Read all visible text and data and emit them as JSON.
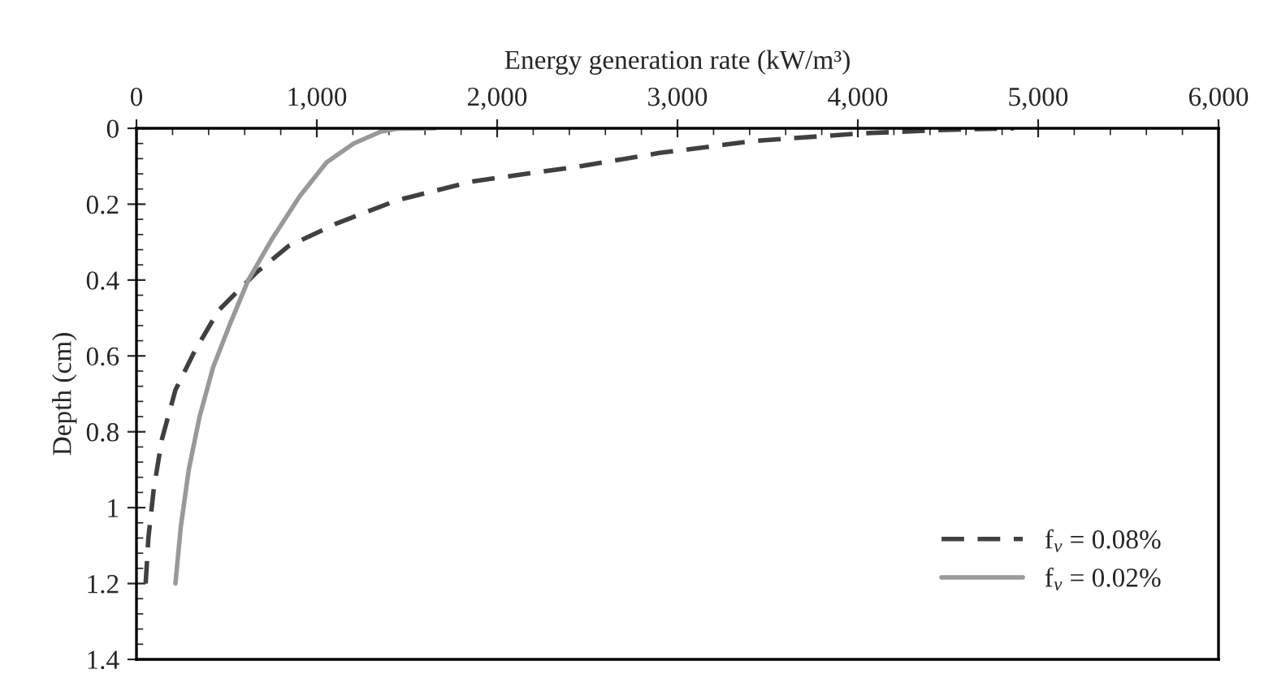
{
  "chart_data": {
    "type": "line",
    "xlabel": "Energy generation rate (kW/m³)",
    "ylabel": "Depth (cm)",
    "xlim": [
      0,
      6000
    ],
    "xticks": [
      0,
      {
        "value": 1000,
        "label": "1,000"
      },
      {
        "value": 2000,
        "label": "2,000"
      },
      {
        "value": 3000,
        "label": "3,000"
      },
      {
        "value": 4000,
        "label": "4,000"
      },
      {
        "value": 5000,
        "label": "5,000"
      },
      {
        "value": 6000,
        "label": "6,000"
      }
    ],
    "ylim": [
      1.4,
      0
    ],
    "yticks": [
      0,
      0.2,
      0.4,
      0.6,
      0.8,
      1,
      1.2,
      1.4
    ],
    "grid": false,
    "legend": "bottom right",
    "marker": "none",
    "series": [
      {
        "name": "f$_{v}$ = 0.08%",
        "color": "#404040",
        "line_style": "dashed",
        "x": [
          51,
          66,
          96,
          141,
          216,
          320,
          455,
          665,
          844,
          1114,
          1443,
          1862,
          2461,
          2900,
          3433,
          4000,
          4478,
          4866
        ],
        "values": [
          1.2,
          1.08,
          0.95,
          0.82,
          0.69,
          0.59,
          0.48,
          0.38,
          0.31,
          0.25,
          0.19,
          0.14,
          0.1,
          0.065,
          0.033,
          0.014,
          0.004,
          0
        ]
      },
      {
        "name": "f$_{v}$ = 0.02%",
        "color": "#999999",
        "line_style": "solid",
        "x": [
          216,
          246,
          290,
          350,
          425,
          515,
          620,
          754,
          904,
          1054,
          1204,
          1353,
          1443,
          1653
        ],
        "values": [
          1.2,
          1.05,
          0.9,
          0.76,
          0.63,
          0.52,
          0.4,
          0.29,
          0.18,
          0.09,
          0.04,
          0.009,
          0.001,
          0
        ]
      }
    ]
  }
}
